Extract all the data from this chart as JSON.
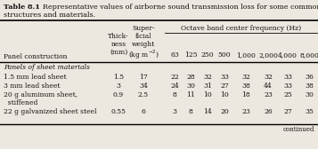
{
  "title_bold": "Table 8.1",
  "title_rest": "  Representative values of airborne sound transmission loss for some common\nstructures and materials.",
  "bg_color": "#ede8df",
  "text_color": "#111111",
  "col_header_span": "Octave band center frequency (Hz)",
  "thick_header": [
    "Thick-",
    "ness",
    "(mm)"
  ],
  "super_header": [
    "Super-",
    "ficial",
    "weight",
    "(kg m⁻²)"
  ],
  "freq_labels": [
    "63",
    "125",
    "250",
    "500",
    "1,000",
    "2,000",
    "4,000",
    "8,000"
  ],
  "panel_construction_label": "Panel construction",
  "section_header": "Panels of sheet materials",
  "rows": [
    [
      "1.5 mm lead sheet",
      "1.5",
      "17",
      "22",
      "28",
      "32",
      "33",
      "32",
      "32",
      "33",
      "36"
    ],
    [
      "3 mm lead sheet",
      "3",
      "34",
      "24",
      "30",
      "31",
      "27",
      "38",
      "44",
      "33",
      "38"
    ],
    [
      "20 g aluminum sheet,",
      "0.9",
      "2.5",
      "8",
      "11",
      "10",
      "10",
      "18",
      "23",
      "25",
      "30"
    ],
    [
      "  stiffened",
      "",
      "",
      "",
      "",
      "",
      "",
      "",
      "",
      "",
      ""
    ],
    [
      "22 g galvanized sheet steel",
      "0.55",
      "6",
      "3",
      "8",
      "14",
      "20",
      "23",
      "26",
      "27",
      "35"
    ]
  ],
  "fontsize": 5.5,
  "title_fontsize": 5.8
}
